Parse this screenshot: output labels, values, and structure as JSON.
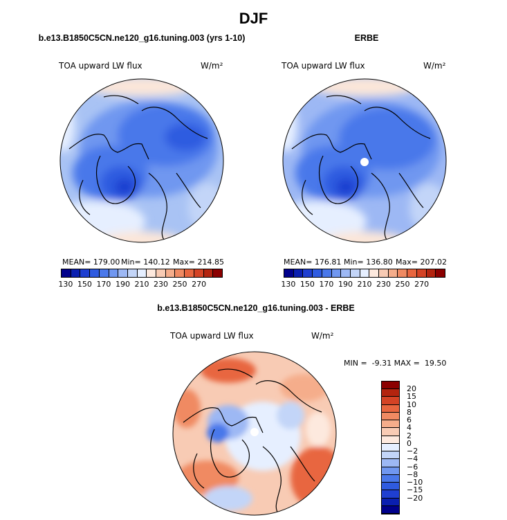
{
  "figure": {
    "title": "DJF"
  },
  "panels": [
    {
      "title": "b.e13.B1850C5CN.ne120_g16.tuning.003 (yrs 1-10)",
      "variable": "TOA upward LW flux",
      "units": "W/m²",
      "mean_text": "MEAN= 179.00",
      "min_text": "Min= 140.12",
      "max_text": "Max= 214.85"
    },
    {
      "title": "ERBE",
      "variable": "TOA upward LW flux",
      "units": "W/m²",
      "mean_text": "MEAN= 176.81",
      "min_text": "Min= 136.80",
      "max_text": "Max= 207.02"
    },
    {
      "title": "b.e13.B1850C5CN.ne120_g16.tuning.003 - ERBE",
      "variable": "TOA upward LW flux",
      "units": "W/m²",
      "minmax_text": "MIN =  -9.31 MAX =  19.50"
    }
  ],
  "colorbar_abs": {
    "colors": [
      "#00008b",
      "#0a1fb0",
      "#1f3fd0",
      "#2f5be0",
      "#4a78ea",
      "#7097f0",
      "#9db8f4",
      "#c3d5f8",
      "#e6efff",
      "#fde9de",
      "#f8cbb4",
      "#f5ad8b",
      "#f08a62",
      "#e8663f",
      "#d44325",
      "#b3240f",
      "#8b0000"
    ],
    "tick_labels": [
      "130",
      "150",
      "170",
      "190",
      "210",
      "230",
      "250",
      "270"
    ]
  },
  "colorbar_diff": {
    "colors": [
      "#00008b",
      "#0a1fb0",
      "#1f3fd0",
      "#2f5be0",
      "#4a78ea",
      "#7097f0",
      "#9db8f4",
      "#c3d5f8",
      "#e6efff",
      "#fde9de",
      "#f8cbb4",
      "#f5ad8b",
      "#f08a62",
      "#e8663f",
      "#d44325",
      "#b3240f",
      "#8b0000"
    ],
    "tick_labels": [
      "20",
      "15",
      "10",
      "8",
      "6",
      "4",
      "2",
      "0",
      "−2",
      "−4",
      "−6",
      "−8",
      "−10",
      "−15",
      "−20"
    ]
  }
}
